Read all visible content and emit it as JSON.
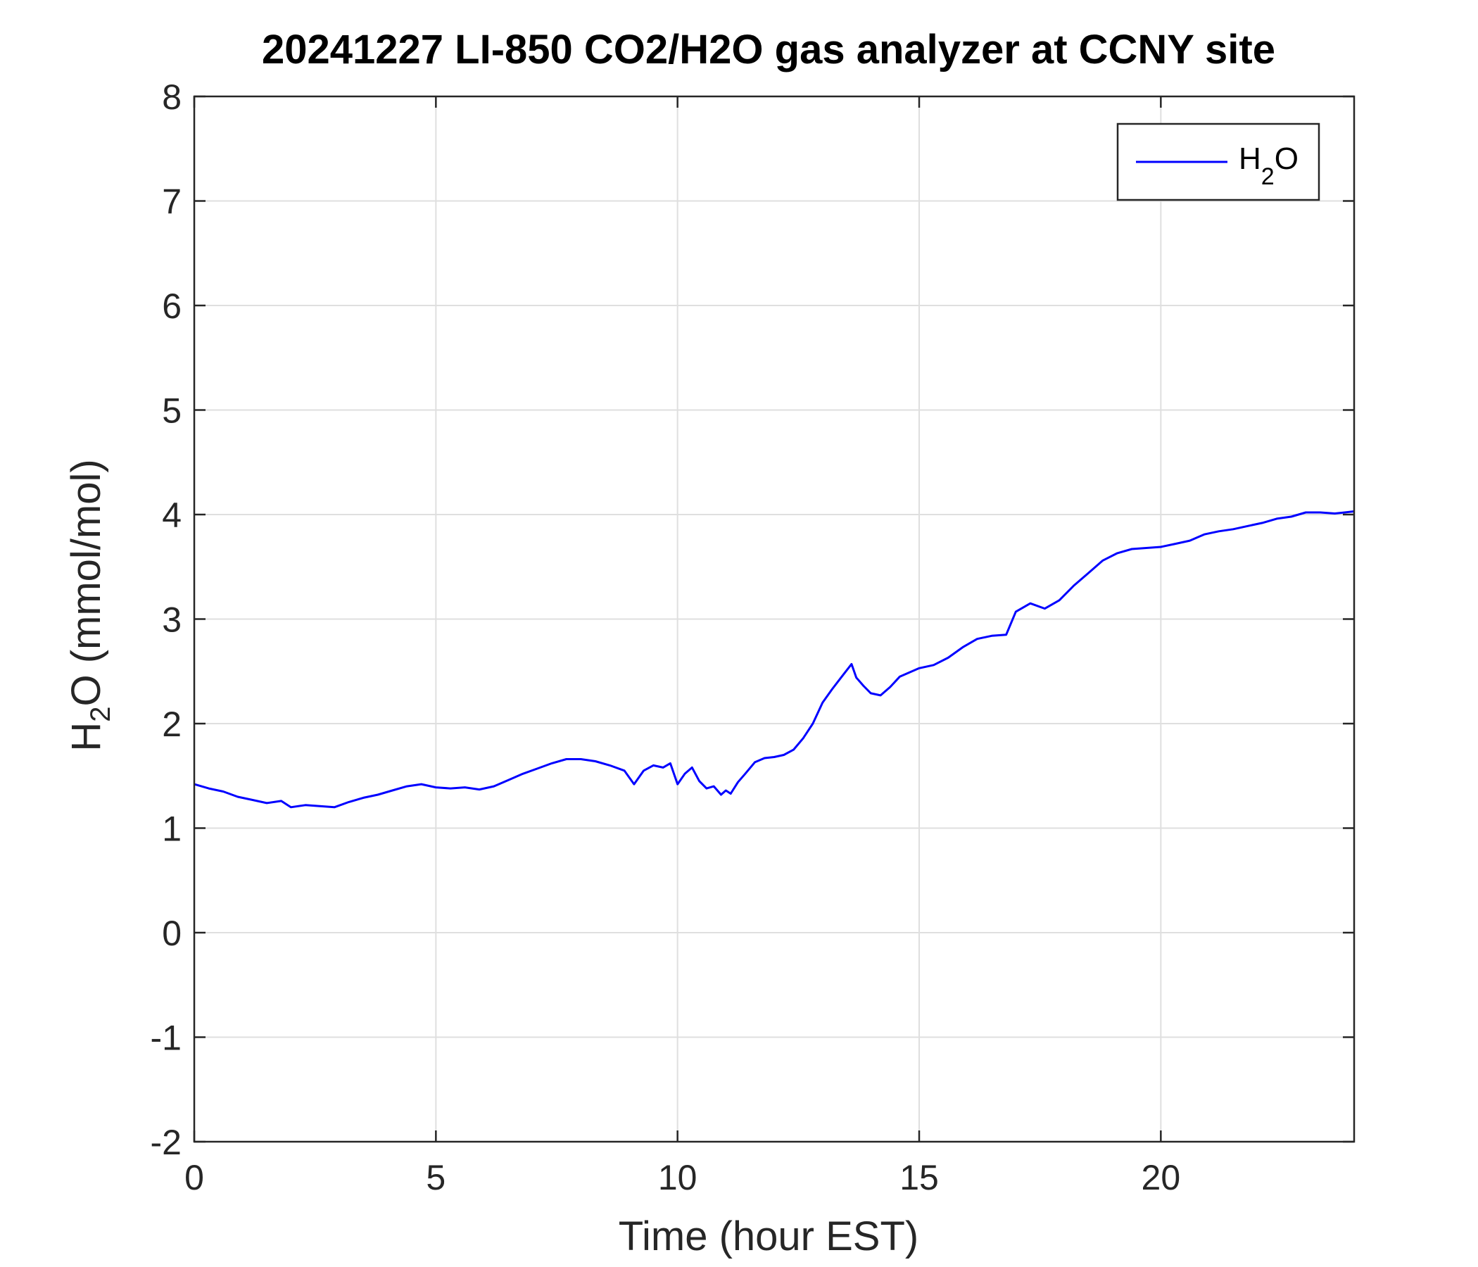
{
  "chart_data": {
    "type": "line",
    "title": "20241227 LI-850 CO2/H2O gas analyzer at CCNY site",
    "xlabel": "Time (hour EST)",
    "ylabel": {
      "base": "H",
      "sub": "2",
      "rest": "O (mmol/mol)"
    },
    "xlim": [
      0,
      24
    ],
    "ylim": [
      -2,
      8
    ],
    "xticks": [
      0,
      5,
      10,
      15,
      20
    ],
    "yticks": [
      -2,
      -1,
      0,
      1,
      2,
      3,
      4,
      5,
      6,
      7,
      8
    ],
    "grid": true,
    "legend_position": "top-right",
    "series": [
      {
        "name": {
          "base": "H",
          "sub": "2",
          "rest": "O"
        },
        "color": "#0000ff",
        "x": [
          0,
          0.3,
          0.6,
          0.9,
          1.2,
          1.5,
          1.8,
          2.0,
          2.3,
          2.6,
          2.9,
          3.2,
          3.5,
          3.8,
          4.1,
          4.4,
          4.7,
          5.0,
          5.3,
          5.6,
          5.9,
          6.2,
          6.5,
          6.8,
          7.1,
          7.4,
          7.7,
          8.0,
          8.3,
          8.6,
          8.9,
          9.1,
          9.3,
          9.5,
          9.7,
          9.85,
          10.0,
          10.15,
          10.3,
          10.45,
          10.6,
          10.75,
          10.9,
          11.0,
          11.1,
          11.25,
          11.4,
          11.6,
          11.8,
          12.0,
          12.2,
          12.4,
          12.6,
          12.8,
          13.0,
          13.2,
          13.4,
          13.6,
          13.7,
          13.85,
          14.0,
          14.2,
          14.4,
          14.6,
          14.8,
          15.0,
          15.3,
          15.6,
          15.9,
          16.2,
          16.5,
          16.8,
          17.0,
          17.3,
          17.6,
          17.9,
          18.2,
          18.5,
          18.8,
          19.1,
          19.4,
          19.7,
          20.0,
          20.3,
          20.6,
          20.9,
          21.2,
          21.5,
          21.8,
          22.1,
          22.4,
          22.7,
          23.0,
          23.3,
          23.6,
          24.0
        ],
        "y": [
          1.42,
          1.38,
          1.35,
          1.3,
          1.27,
          1.24,
          1.26,
          1.2,
          1.22,
          1.21,
          1.2,
          1.25,
          1.29,
          1.32,
          1.36,
          1.4,
          1.42,
          1.39,
          1.38,
          1.39,
          1.37,
          1.4,
          1.46,
          1.52,
          1.57,
          1.62,
          1.66,
          1.66,
          1.64,
          1.6,
          1.55,
          1.42,
          1.55,
          1.6,
          1.58,
          1.62,
          1.42,
          1.52,
          1.58,
          1.45,
          1.38,
          1.4,
          1.32,
          1.36,
          1.33,
          1.44,
          1.52,
          1.63,
          1.67,
          1.68,
          1.7,
          1.75,
          1.86,
          2.0,
          2.2,
          2.33,
          2.45,
          2.57,
          2.44,
          2.36,
          2.29,
          2.27,
          2.35,
          2.45,
          2.49,
          2.53,
          2.56,
          2.63,
          2.73,
          2.81,
          2.84,
          2.85,
          3.07,
          3.15,
          3.1,
          3.18,
          3.32,
          3.44,
          3.56,
          3.63,
          3.67,
          3.68,
          3.69,
          3.72,
          3.75,
          3.81,
          3.84,
          3.86,
          3.89,
          3.92,
          3.96,
          3.98,
          4.02,
          4.02,
          4.01,
          4.03
        ]
      }
    ]
  }
}
